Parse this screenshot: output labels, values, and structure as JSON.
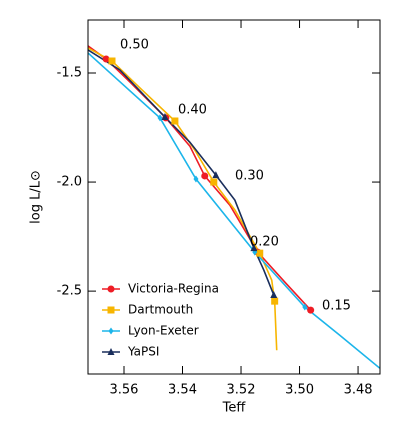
{
  "chart_data": {
    "type": "line",
    "x_label": "Teff",
    "y_label": "log L/L⊙",
    "xlim": [
      3.5723,
      3.4725
    ],
    "ylim": [
      -2.88,
      -1.257
    ],
    "xticks": [
      3.56,
      3.54,
      3.52,
      {
        "value": 3.5,
        "label": "3.50"
      },
      3.48
    ],
    "yticks": [
      -1.5,
      {
        "value": -2,
        "label": "-2.0"
      },
      -2.5
    ],
    "annotations": [
      "0.50",
      "0.40",
      "0.30",
      "0.20",
      "0.15"
    ],
    "legend": "lower left",
    "series": [
      {
        "name": "Victoria-Regina",
        "color": "#ee1c25",
        "marker": "circle",
        "x": [
          3.5723,
          3.5661,
          3.558,
          3.5457,
          3.5375,
          3.5324,
          3.5238,
          3.5143,
          3.505,
          3.4962
        ],
        "values": [
          -1.376,
          -1.436,
          -1.541,
          -1.706,
          -1.835,
          -1.972,
          -2.106,
          -2.321,
          -2.459,
          -2.587
        ],
        "marker_x": [
          3.5661,
          3.5457,
          3.5324,
          3.5143,
          3.4962
        ],
        "marker_values": [
          -1.436,
          -1.706,
          -1.972,
          -2.321,
          -2.587
        ]
      },
      {
        "name": "Dartmouth",
        "color": "#f7b500",
        "marker": "square",
        "x": [
          3.5723,
          3.5641,
          3.5545,
          3.5426,
          3.5358,
          3.5293,
          3.5221,
          3.5136,
          3.5095,
          3.5085,
          3.5078
        ],
        "values": [
          -1.385,
          -1.445,
          -1.569,
          -1.72,
          -1.853,
          -2.0,
          -2.128,
          -2.326,
          -2.45,
          -2.546,
          -2.771
        ],
        "marker_x": [
          3.5641,
          3.5426,
          3.5293,
          3.5136,
          3.5085
        ],
        "marker_values": [
          -1.445,
          -1.72,
          -2.0,
          -2.326,
          -2.546
        ]
      },
      {
        "name": "Lyon-Exeter",
        "color": "#1cb5ea",
        "marker": "diamond",
        "x": [
          3.5723,
          3.5477,
          3.5354,
          3.5153,
          3.4982,
          3.4863,
          3.4726
        ],
        "values": [
          -1.408,
          -1.706,
          -1.986,
          -2.321,
          -2.573,
          -2.702,
          -2.853
        ],
        "marker_x": [
          3.5477,
          3.5354,
          3.5153,
          3.4982
        ],
        "marker_values": [
          -1.706,
          -1.986,
          -2.321,
          -2.573
        ]
      },
      {
        "name": "YaPSI",
        "color": "#1a2e5c",
        "marker": "triangle",
        "x": [
          3.5723,
          3.5614,
          3.546,
          3.5375,
          3.5286,
          3.5221,
          3.5156,
          3.5122,
          3.5088
        ],
        "values": [
          -1.394,
          -1.486,
          -1.702,
          -1.817,
          -1.968,
          -2.083,
          -2.303,
          -2.404,
          -2.518
        ],
        "marker_x": [
          3.546,
          3.5286,
          3.5156,
          3.5088
        ],
        "marker_values": [
          -1.702,
          -1.968,
          -2.303,
          -2.518
        ]
      }
    ]
  }
}
